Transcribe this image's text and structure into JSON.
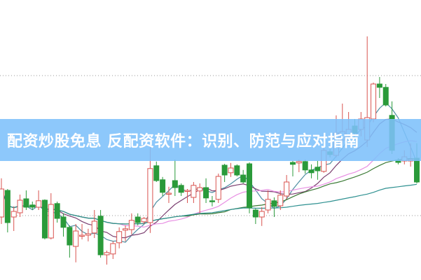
{
  "banner": {
    "title": "配资炒股免息 反配资软件：识别、防范与应对指南",
    "background": "#7dc0fa"
  },
  "chart_data": {
    "type": "candlestick",
    "title": "",
    "xlabel": "",
    "ylabel": "",
    "ylim": [
      0,
      100
    ],
    "grid": "dotted horizontal",
    "gridlines": [
      73,
      23
    ],
    "up_color": "#d9534f",
    "down_color": "#2a9a3a",
    "ohlc_fields": [
      "open",
      "high",
      "low",
      "close"
    ],
    "candles": [
      [
        22.5,
        36.3,
        20,
        32.5
      ],
      [
        32,
        32.5,
        17,
        20.5
      ],
      [
        22.5,
        26.3,
        17.5,
        24.5
      ],
      [
        24,
        30.5,
        22.5,
        28.5
      ],
      [
        29,
        32,
        25,
        26
      ],
      [
        26.8,
        28,
        25,
        26
      ],
      [
        26,
        32,
        25,
        28.3
      ],
      [
        28.5,
        28.8,
        14.5,
        15
      ],
      [
        15,
        31,
        14.5,
        27
      ],
      [
        27.3,
        28,
        20.5,
        22
      ],
      [
        22.5,
        23.8,
        15.5,
        18.8
      ],
      [
        18.8,
        19.5,
        8,
        12.5
      ],
      [
        12,
        20,
        6.3,
        17.5
      ],
      [
        15.8,
        20,
        14.5,
        16
      ],
      [
        16,
        18.3,
        13.8,
        16.5
      ],
      [
        16.8,
        25,
        15,
        21
      ],
      [
        22.8,
        25,
        8,
        9
      ],
      [
        9,
        10.5,
        5.5,
        9.8
      ],
      [
        9.3,
        13.8,
        7.5,
        13
      ],
      [
        13.3,
        18.8,
        11.3,
        17.3
      ],
      [
        17.8,
        19.5,
        13.8,
        18.3
      ],
      [
        18,
        23.8,
        16.3,
        21.3
      ],
      [
        22.5,
        23.8,
        19.5,
        20.5
      ],
      [
        20.8,
        22.5,
        20,
        22
      ],
      [
        20.5,
        48.3,
        16.8,
        39.8
      ],
      [
        40.8,
        42.3,
        35,
        35.5
      ],
      [
        35.8,
        36.8,
        30,
        31.3
      ],
      [
        31,
        33.3,
        27.5,
        31
      ],
      [
        35.5,
        43,
        30,
        33
      ],
      [
        33.8,
        34.5,
        30,
        31.3
      ],
      [
        31.8,
        32.5,
        27.5,
        32
      ],
      [
        29.5,
        35,
        27.5,
        33.8
      ],
      [
        31.8,
        34.5,
        23.8,
        33
      ],
      [
        33,
        36.3,
        27.5,
        29.3
      ],
      [
        28.3,
        30,
        26.3,
        28
      ],
      [
        28.8,
        38,
        27.5,
        37
      ],
      [
        41,
        41.5,
        35,
        37.5
      ],
      [
        38.3,
        41.8,
        36.8,
        40
      ],
      [
        40.8,
        41.3,
        37,
        37.5
      ],
      [
        37.5,
        39.3,
        34.5,
        35
      ],
      [
        41.5,
        42,
        23.8,
        25.8
      ],
      [
        25,
        25.5,
        20,
        22.5
      ],
      [
        22.5,
        26,
        19.3,
        24.5
      ],
      [
        25,
        32,
        23.8,
        28.8
      ],
      [
        28.3,
        29.5,
        22.5,
        26.3
      ],
      [
        26.5,
        32,
        25,
        30.3
      ],
      [
        30,
        37.5,
        28.8,
        35
      ],
      [
        42,
        42.5,
        37,
        41.3
      ],
      [
        41.8,
        43,
        38.5,
        42.3
      ],
      [
        42.3,
        43,
        38,
        39.3
      ],
      [
        39.3,
        41.3,
        36.3,
        38.3
      ],
      [
        40.3,
        42.5,
        35.8,
        39
      ],
      [
        38.8,
        47,
        38.3,
        46.3
      ],
      [
        45.8,
        47,
        43.8,
        44.8
      ],
      [
        44.5,
        58.8,
        43.8,
        52.5
      ],
      [
        50,
        63,
        48.8,
        53
      ],
      [
        51.3,
        60,
        50,
        53.8
      ],
      [
        55,
        57.5,
        50,
        52.5
      ],
      [
        53.8,
        60,
        51.3,
        57.5
      ],
      [
        50,
        87,
        47.5,
        58
      ],
      [
        57.5,
        70.5,
        56.3,
        70
      ],
      [
        70,
        72.5,
        65,
        68.8
      ],
      [
        68.8,
        70,
        62,
        62.5
      ],
      [
        58.8,
        63.8,
        45,
        46.3
      ],
      [
        42.8,
        43.5,
        41.3,
        42
      ],
      [
        42.5,
        46.3,
        41.3,
        44
      ],
      [
        42.5,
        48.8,
        40.5,
        43
      ],
      [
        43.5,
        48.8,
        34.5,
        35
      ]
    ],
    "moving_averages": [
      {
        "period": 5,
        "color": "#4f8fa3"
      },
      {
        "period": 10,
        "color": "#7b3f70"
      },
      {
        "period": 20,
        "color": "#e890e3"
      },
      {
        "period": 30,
        "color": "#3b7a35"
      },
      {
        "period": 60,
        "color": "#2f9191"
      }
    ]
  }
}
